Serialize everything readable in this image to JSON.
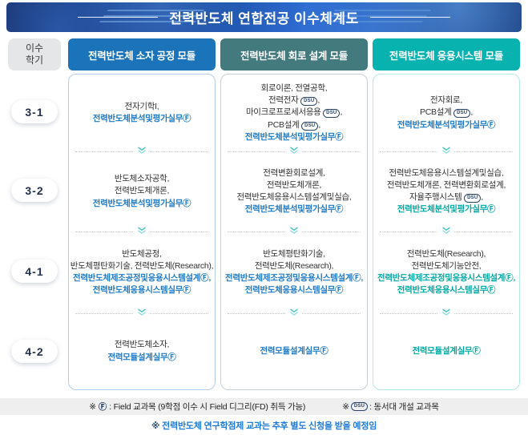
{
  "title": "전력반도체 연합전공 이수체계도",
  "semester_header": "이수\n학기",
  "semesters": [
    "3-1",
    "3-2",
    "4-1",
    "4-2"
  ],
  "colors": {
    "banner_navy": "#13265e",
    "module1_blue": "#1b74b9",
    "module2_teal_gray": "#427a7e",
    "module3_teal": "#07b2af",
    "emphasis_blue": "#1e7ac6",
    "emphasis_teal": "#00a9a4",
    "note_blue": "#1e7ad4"
  },
  "icons": {
    "row_separator": "double-chevron-down-icon",
    "field_mark": "circled-F",
    "dsu_mark": "DSU-oval-badge"
  },
  "columns": [
    {
      "header": "전력반도체 소자 공정 모듈",
      "cells": [
        {
          "lines": [
            [
              {
                "k": "n",
                "t": "전자기학I,"
              }
            ],
            [
              {
                "k": "em",
                "c": "blue",
                "t": "전력반도체분석및평가실무Ⓕ"
              }
            ]
          ]
        },
        {
          "lines": [
            [
              {
                "k": "n",
                "t": "반도체소자공학,"
              }
            ],
            [
              {
                "k": "n",
                "t": "전력반도체개론,"
              }
            ],
            [
              {
                "k": "em",
                "c": "blue",
                "t": "전력반도체분석및평가실무Ⓕ"
              }
            ]
          ]
        },
        {
          "lines": [
            [
              {
                "k": "n",
                "t": "반도체공정,"
              }
            ],
            [
              {
                "k": "n",
                "t": "반도체평탄화기술, 전력반도체(Research),"
              }
            ],
            [
              {
                "k": "em",
                "c": "blue",
                "t": "전력반도체제조공정및응용시스템설계Ⓕ,"
              }
            ],
            [
              {
                "k": "em",
                "c": "blue",
                "t": "전력반도체응용시스템실무Ⓕ"
              }
            ]
          ]
        },
        {
          "lines": [
            [
              {
                "k": "n",
                "t": "전력반도체소자,"
              }
            ],
            [
              {
                "k": "em",
                "c": "blue",
                "t": "전력모듈설계실무Ⓕ"
              }
            ]
          ]
        }
      ]
    },
    {
      "header": "전력반도체 회로 설계 모듈",
      "cells": [
        {
          "lines": [
            [
              {
                "k": "n",
                "t": "회로이론, 전열공학,"
              }
            ],
            [
              {
                "k": "n",
                "t": "전력전자 "
              },
              {
                "k": "dsu"
              },
              {
                "k": "n",
                "t": ","
              }
            ],
            [
              {
                "k": "n",
                "t": "마이크로프로세서응용 "
              },
              {
                "k": "dsu"
              },
              {
                "k": "n",
                "t": ","
              }
            ],
            [
              {
                "k": "n",
                "t": "PCB설계 "
              },
              {
                "k": "dsu"
              },
              {
                "k": "n",
                "t": ","
              }
            ],
            [
              {
                "k": "em",
                "c": "blue",
                "t": "전력반도체분석및평가실무Ⓕ"
              }
            ]
          ]
        },
        {
          "lines": [
            [
              {
                "k": "n",
                "t": "전력변환회로설계,"
              }
            ],
            [
              {
                "k": "n",
                "t": "전력반도체개론,"
              }
            ],
            [
              {
                "k": "n",
                "t": "전력반도체응용시스템설계및실습,"
              }
            ],
            [
              {
                "k": "em",
                "c": "blue",
                "t": "전력반도체분석및평가실무Ⓕ"
              }
            ]
          ]
        },
        {
          "lines": [
            [
              {
                "k": "n",
                "t": "반도체평탄화기술,"
              }
            ],
            [
              {
                "k": "n",
                "t": "전력반도체(Research),"
              }
            ],
            [
              {
                "k": "em",
                "c": "blue",
                "t": "전력반도체제조공정및응용시스템설계Ⓕ,"
              }
            ],
            [
              {
                "k": "em",
                "c": "blue",
                "t": "전력반도체응용시스템실무Ⓕ"
              }
            ]
          ]
        },
        {
          "lines": [
            [
              {
                "k": "em",
                "c": "blue",
                "t": "전력모듈설계실무Ⓕ"
              }
            ]
          ]
        }
      ]
    },
    {
      "header": "전력반도체 응용시스템 모듈",
      "cells": [
        {
          "lines": [
            [
              {
                "k": "n",
                "t": "전자회로,"
              }
            ],
            [
              {
                "k": "n",
                "t": "PCB설계 "
              },
              {
                "k": "dsu"
              },
              {
                "k": "n",
                "t": ","
              }
            ],
            [
              {
                "k": "em",
                "c": "blue",
                "t": "전력반도체분석및평가실무Ⓕ"
              }
            ]
          ]
        },
        {
          "lines": [
            [
              {
                "k": "n",
                "t": "전력반도체응용시스템설계및실습,"
              }
            ],
            [
              {
                "k": "n",
                "t": "전력반도체개론, 전력변환회로설계,"
              }
            ],
            [
              {
                "k": "n",
                "t": "자율주행시스템 "
              },
              {
                "k": "dsu"
              },
              {
                "k": "n",
                "t": ","
              }
            ],
            [
              {
                "k": "em",
                "c": "teal",
                "t": "전력반도체분석및평가실무Ⓕ"
              }
            ]
          ]
        },
        {
          "lines": [
            [
              {
                "k": "n",
                "t": "전력반도체(Research),"
              }
            ],
            [
              {
                "k": "n",
                "t": "전력반도체기능안전,"
              }
            ],
            [
              {
                "k": "em",
                "c": "teal",
                "t": "전력반도체제조공정및응용시스템설계Ⓕ,"
              }
            ],
            [
              {
                "k": "em",
                "c": "teal",
                "t": "전력반도체응용시스템실무Ⓕ"
              }
            ]
          ]
        },
        {
          "lines": [
            [
              {
                "k": "em",
                "c": "teal",
                "t": "전력모듈설계실무Ⓕ"
              }
            ]
          ]
        }
      ]
    }
  ],
  "legend": {
    "field_marker": "※",
    "field_symbol": "Ⓕ",
    "field_text": ": Field 교과목 (9학점 이수 시 Field 디그리(FD) 취득 가능)",
    "dsu_marker": "※",
    "dsu_badge": "DSU",
    "dsu_text": ": 동서대 개설 교과목"
  },
  "bottom_note": {
    "marker": "※",
    "text": "전력반도체 연구학점제 교과는 추후 별도 신청을 받을 예정임"
  }
}
